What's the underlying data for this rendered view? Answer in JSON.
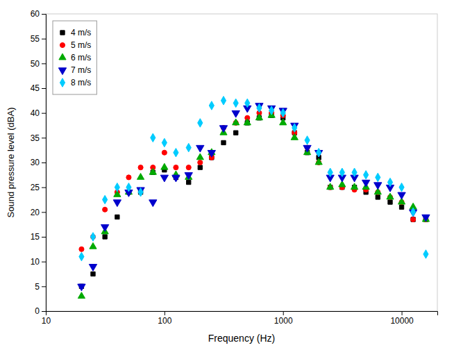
{
  "chart_data": {
    "type": "scatter",
    "xlabel": "Frequency (Hz)",
    "ylabel": "Sound pressure level (dBA)",
    "log": "x",
    "grid": false,
    "legend": "upper-left",
    "xlim": [
      10,
      20000
    ],
    "ylim": [
      0,
      60
    ],
    "xticks": [
      10,
      100,
      1000,
      10000
    ],
    "yticks": [
      0,
      5,
      10,
      15,
      20,
      25,
      30,
      35,
      40,
      45,
      50,
      55,
      60
    ],
    "x": [
      20,
      25,
      31.5,
      40,
      50,
      63,
      80,
      100,
      125,
      160,
      200,
      250,
      315,
      400,
      500,
      630,
      800,
      1000,
      1250,
      1600,
      2000,
      2500,
      3150,
      4000,
      5000,
      6300,
      8000,
      10000,
      12500,
      16000
    ],
    "series": [
      {
        "name": "4 m/s",
        "color": "#000000",
        "marker": "square",
        "values": [
          5,
          7.5,
          15,
          19,
          24,
          24,
          28,
          28.5,
          27,
          26,
          29,
          31,
          34,
          36,
          38,
          39,
          39.5,
          39,
          36,
          32,
          31,
          25,
          25,
          25,
          24,
          23,
          22,
          21,
          18.5,
          18.5
        ]
      },
      {
        "name": "5 m/s",
        "color": "#ff0000",
        "marker": "circle",
        "values": [
          12.5,
          15,
          20.5,
          24,
          27,
          29,
          29,
          32,
          29,
          29,
          30,
          31,
          37,
          38,
          39,
          40,
          40,
          39.5,
          36,
          33,
          30,
          25,
          25,
          24.5,
          24.5,
          24,
          23,
          22,
          18.5,
          18.5
        ]
      },
      {
        "name": "6 m/s",
        "color": "#00aa00",
        "marker": "triangle-up",
        "values": [
          3,
          13,
          16,
          23.5,
          24,
          27,
          28,
          29,
          27.5,
          27,
          31,
          32,
          36,
          38,
          38,
          39,
          39.5,
          38,
          35,
          32,
          30,
          25,
          25.5,
          25,
          25,
          24,
          23,
          22,
          21,
          18.5
        ]
      },
      {
        "name": "7 m/s",
        "color": "#0000cc",
        "marker": "triangle-down",
        "values": [
          5,
          9,
          17,
          22,
          24,
          24.5,
          22,
          27,
          27,
          27.5,
          33,
          32,
          37,
          40,
          41,
          41.5,
          41,
          40.5,
          37.5,
          33,
          32,
          27,
          27,
          27,
          26,
          25.5,
          25,
          23.5,
          20,
          19
        ]
      },
      {
        "name": "8 m/s",
        "color": "#00ccff",
        "marker": "diamond",
        "values": [
          11,
          15,
          22.5,
          25,
          25,
          24,
          35,
          34,
          32,
          33,
          38,
          41.5,
          42.5,
          42,
          42,
          41,
          40.5,
          40,
          37,
          34.5,
          32,
          28,
          28,
          28,
          27.5,
          27,
          26,
          25,
          20,
          11.5
        ]
      }
    ]
  }
}
